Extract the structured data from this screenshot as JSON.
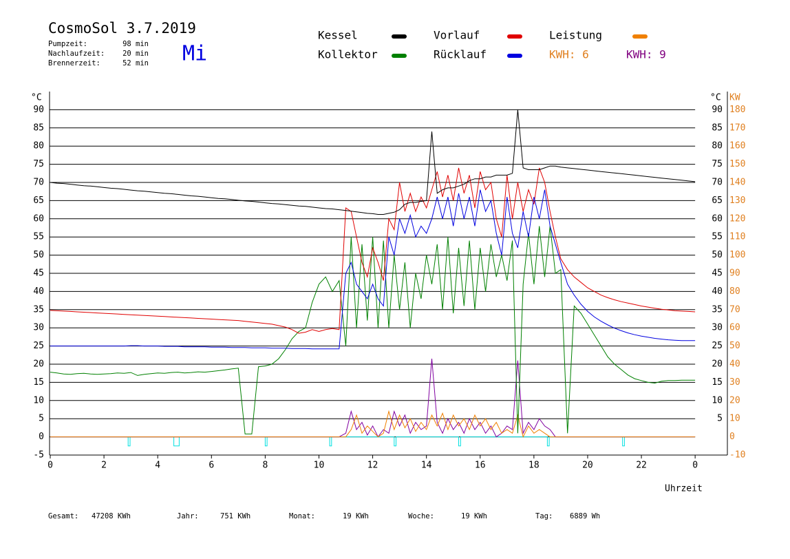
{
  "header": {
    "title": "CosmoSol 3.7.2019",
    "day": "Mi",
    "info": [
      {
        "label": "Pumpzeit:",
        "value": "98 min"
      },
      {
        "label": "Nachlaufzeit:",
        "value": "20 min"
      },
      {
        "label": "Brennerzeit:",
        "value": "52 min"
      }
    ]
  },
  "footer": [
    {
      "label": "Gesamt:",
      "value": "47208 KWh"
    },
    {
      "label": "Jahr:",
      "value": "751 KWh"
    },
    {
      "label": "Monat:",
      "value": "19 KWh"
    },
    {
      "label": "Woche:",
      "value": "19 KWh"
    },
    {
      "label": "Tag:",
      "value": "6889 Wh"
    }
  ],
  "chart_data": {
    "type": "line",
    "x_label": "Uhrzeit",
    "y_label": "°C",
    "y2_label": "KW",
    "grid": true,
    "xlim": [
      0,
      25.2
    ],
    "xticks": [
      0,
      2,
      4,
      6,
      8,
      10,
      12,
      14,
      16,
      18,
      20,
      22,
      {
        "value": 24,
        "label": "0"
      }
    ],
    "ylim": [
      -5,
      95
    ],
    "yticks": [
      -5,
      0,
      5,
      10,
      15,
      20,
      25,
      30,
      35,
      40,
      45,
      50,
      55,
      60,
      65,
      70,
      75,
      80,
      85,
      90
    ],
    "yticks_right": [
      5,
      10,
      15,
      20,
      25,
      30,
      35,
      40,
      45,
      50,
      55,
      60,
      65,
      70,
      75,
      80,
      85,
      90
    ],
    "y2lim": [
      -10,
      190
    ],
    "y2ticks": [
      -10,
      0,
      10,
      20,
      30,
      40,
      50,
      60,
      70,
      80,
      90,
      100,
      110,
      120,
      130,
      140,
      150,
      160,
      170,
      180
    ],
    "x": [
      0,
      0.25,
      0.5,
      0.75,
      1,
      1.25,
      1.5,
      1.75,
      2,
      2.25,
      2.5,
      2.75,
      3,
      3.25,
      3.5,
      3.75,
      4,
      4.25,
      4.5,
      4.75,
      5,
      5.25,
      5.5,
      5.75,
      6,
      6.25,
      6.5,
      6.75,
      7,
      7.25,
      7.5,
      7.75,
      8,
      8.25,
      8.5,
      8.75,
      9,
      9.25,
      9.5,
      9.75,
      10,
      10.25,
      10.5,
      10.75,
      11,
      11.2,
      11.4,
      11.6,
      11.8,
      12,
      12.2,
      12.4,
      12.6,
      12.8,
      13,
      13.2,
      13.4,
      13.6,
      13.8,
      14,
      14.2,
      14.4,
      14.6,
      14.8,
      15,
      15.2,
      15.4,
      15.6,
      15.8,
      16,
      16.2,
      16.4,
      16.6,
      16.8,
      17,
      17.2,
      17.4,
      17.6,
      17.8,
      18,
      18.2,
      18.4,
      18.6,
      18.8,
      19,
      19.25,
      19.5,
      19.75,
      20,
      20.25,
      20.5,
      20.75,
      21,
      21.25,
      21.5,
      21.75,
      22,
      22.25,
      22.5,
      22.75,
      23,
      23.25,
      23.5,
      23.75,
      24
    ],
    "series": [
      {
        "name": "Kessel",
        "color": "#000000",
        "values": [
          70,
          69.8,
          69.7,
          69.5,
          69.3,
          69.1,
          69.0,
          68.8,
          68.6,
          68.4,
          68.3,
          68.1,
          67.9,
          67.7,
          67.6,
          67.4,
          67.2,
          67.0,
          66.9,
          66.7,
          66.5,
          66.3,
          66.2,
          66.0,
          65.8,
          65.6,
          65.5,
          65.3,
          65.1,
          64.9,
          64.8,
          64.6,
          64.4,
          64.2,
          64.1,
          63.9,
          63.7,
          63.5,
          63.4,
          63.2,
          63.0,
          62.8,
          62.7,
          62.5,
          62.3,
          62.1,
          61.9,
          61.7,
          61.5,
          61.4,
          61.2,
          61.2,
          61.5,
          61.8,
          62.5,
          64,
          64.5,
          64.5,
          64.8,
          65,
          84,
          67,
          68,
          68.5,
          68.5,
          69,
          69.5,
          70.5,
          71,
          71,
          71.5,
          71.5,
          72,
          72,
          72,
          72.5,
          90,
          74,
          73.5,
          73.5,
          73.5,
          74,
          74.5,
          74.5,
          74.2,
          74.0,
          73.8,
          73.6,
          73.4,
          73.2,
          73.0,
          72.8,
          72.6,
          72.4,
          72.2,
          72.0,
          71.8,
          71.6,
          71.4,
          71.2,
          71.0,
          70.8,
          70.6,
          70.4,
          70.2
        ]
      },
      {
        "name": "Kollektor",
        "color": "#008000",
        "values": [
          17.8,
          17.6,
          17.3,
          17.2,
          17.4,
          17.5,
          17.3,
          17.2,
          17.3,
          17.4,
          17.6,
          17.5,
          17.7,
          16.9,
          17.2,
          17.4,
          17.6,
          17.5,
          17.7,
          17.8,
          17.6,
          17.7,
          17.9,
          17.8,
          18.0,
          18.2,
          18.4,
          18.7,
          18.9,
          0.8,
          0.8,
          19.3,
          19.5,
          20.0,
          21.5,
          24.0,
          27.0,
          29.0,
          30.0,
          37.0,
          42.0,
          44.0,
          40.0,
          43.0,
          25,
          55,
          30,
          53,
          32,
          55,
          30,
          54,
          30,
          50,
          35,
          48,
          30,
          45,
          38,
          50,
          42,
          53,
          35,
          55,
          34,
          52,
          36,
          54,
          35,
          52,
          40,
          53,
          44,
          50,
          43,
          54,
          1,
          42,
          56,
          42,
          58,
          44,
          58,
          45,
          46,
          1,
          36,
          34,
          31,
          28,
          25,
          22,
          20,
          18.5,
          17,
          16,
          15.5,
          15,
          14.8,
          15.3,
          15.5,
          15.5,
          15.6,
          15.6,
          15.6
        ]
      },
      {
        "name": "Vorlauf",
        "color": "#e00000",
        "values": [
          34.8,
          34.7,
          34.6,
          34.5,
          34.4,
          34.3,
          34.2,
          34.1,
          34.0,
          33.9,
          33.8,
          33.7,
          33.6,
          33.5,
          33.4,
          33.3,
          33.2,
          33.1,
          33.0,
          32.9,
          32.8,
          32.7,
          32.6,
          32.5,
          32.4,
          32.3,
          32.2,
          32.1,
          32.0,
          31.8,
          31.6,
          31.4,
          31.2,
          31.0,
          30.6,
          30.2,
          29.5,
          28.5,
          28.8,
          29.5,
          29.0,
          29.5,
          29.8,
          29.5,
          63,
          62,
          55,
          48,
          44,
          52,
          48,
          43,
          60,
          57,
          70,
          62,
          67,
          62,
          66,
          63,
          68,
          73,
          66,
          72,
          65,
          74,
          67,
          72,
          63,
          73,
          68,
          70,
          60,
          55,
          72,
          60,
          70,
          62,
          68,
          64,
          74,
          70,
          62,
          55,
          49,
          46,
          44,
          42.5,
          41,
          40,
          39,
          38.3,
          37.7,
          37.2,
          36.8,
          36.4,
          36.0,
          35.7,
          35.4,
          35.1,
          34.9,
          34.7,
          34.6,
          34.5,
          34.4
        ]
      },
      {
        "name": "Rücklauf",
        "color": "#0000e0",
        "values": [
          25,
          25,
          25,
          25,
          25,
          25,
          25,
          25,
          25,
          25,
          25,
          25,
          25.1,
          25.1,
          25,
          25,
          25,
          24.9,
          24.9,
          24.9,
          24.8,
          24.8,
          24.8,
          24.8,
          24.7,
          24.7,
          24.7,
          24.6,
          24.6,
          24.6,
          24.5,
          24.5,
          24.5,
          24.4,
          24.4,
          24.4,
          24.3,
          24.3,
          24.3,
          24.2,
          24.2,
          24.2,
          24.2,
          24.2,
          45,
          48,
          42,
          40,
          38,
          42,
          38,
          36,
          55,
          50,
          60,
          56,
          61,
          55,
          58,
          56,
          60,
          66,
          60,
          66,
          58,
          67,
          60,
          66,
          58,
          68,
          62,
          65,
          56,
          50,
          66,
          56,
          52,
          62,
          55,
          66,
          60,
          68,
          58,
          53,
          48,
          42,
          39,
          36.5,
          34.5,
          33,
          31.8,
          30.8,
          29.9,
          29.2,
          28.6,
          28.1,
          27.7,
          27.4,
          27.1,
          26.9,
          26.7,
          26.6,
          26.5,
          26.5,
          26.5
        ]
      },
      {
        "name": "Leistung",
        "color": "#f08000",
        "axis": "y2",
        "values": [
          0,
          0,
          0,
          0,
          0,
          0,
          0,
          0,
          0,
          0,
          0,
          0,
          0,
          0,
          0,
          0,
          0,
          0,
          0,
          0,
          0,
          0,
          0,
          0,
          0,
          0,
          0,
          0,
          0,
          0,
          0,
          0,
          0,
          0,
          0,
          0,
          0,
          0,
          0,
          0,
          0,
          0,
          0,
          0,
          0,
          4,
          12,
          2,
          6,
          3,
          0,
          2,
          14,
          4,
          12,
          5,
          10,
          3,
          8,
          4,
          12,
          6,
          13,
          4,
          12,
          6,
          10,
          4,
          12,
          6,
          10,
          4,
          8,
          2,
          4,
          2,
          12,
          0,
          6,
          2,
          4,
          2,
          0,
          0,
          0,
          0,
          0,
          0,
          0,
          0,
          0,
          0,
          0,
          0,
          0,
          0,
          0,
          0,
          0,
          0,
          0,
          0,
          0,
          0,
          0
        ]
      },
      {
        "color": "#8000a0",
        "axis": "y2",
        "values": [
          0,
          0,
          0,
          0,
          0,
          0,
          0,
          0,
          0,
          0,
          0,
          0,
          0,
          0,
          0,
          0,
          0,
          0,
          0,
          0,
          0,
          0,
          0,
          0,
          0,
          0,
          0,
          0,
          0,
          0,
          0,
          0,
          0,
          0,
          0,
          0,
          0,
          0,
          0,
          0,
          0,
          0,
          0,
          0,
          2,
          14,
          4,
          8,
          1,
          6,
          0,
          4,
          2,
          14,
          6,
          12,
          2,
          8,
          4,
          6,
          43,
          8,
          2,
          10,
          4,
          8,
          2,
          10,
          4,
          8,
          2,
          6,
          0,
          2,
          6,
          4,
          42,
          2,
          8,
          4,
          10,
          6,
          4,
          0,
          0,
          0,
          0,
          0,
          0,
          0,
          0,
          0,
          0,
          0,
          0,
          0,
          0,
          0,
          0,
          0,
          0,
          0,
          0,
          0,
          0
        ]
      },
      {
        "color": "#00e0e0",
        "x": [
          0,
          2.9,
          2.9,
          2.97,
          2.97,
          4.6,
          4.6,
          4.8,
          4.8,
          8.0,
          8.0,
          8.07,
          8.07,
          10.4,
          10.4,
          10.47,
          10.47,
          12.8,
          12.8,
          12.87,
          12.87,
          15.2,
          15.2,
          15.27,
          15.27,
          18.5,
          18.5,
          18.57,
          18.57,
          21.3,
          21.3,
          21.37,
          21.37,
          24
        ],
        "values": [
          0,
          0,
          -2.5,
          -2.5,
          0,
          0,
          -2.5,
          -2.5,
          0,
          0,
          -2.5,
          -2.5,
          0,
          0,
          -2.5,
          -2.5,
          0,
          0,
          -2.5,
          -2.5,
          0,
          0,
          -2.5,
          -2.5,
          0,
          0,
          -2.5,
          -2.5,
          0,
          0,
          -2.5,
          -2.5,
          0,
          0
        ]
      }
    ],
    "energy_labels": [
      {
        "label": "KWH: 6",
        "color": "#e08020"
      },
      {
        "label": "KWH: 9",
        "color": "#800080"
      }
    ]
  }
}
